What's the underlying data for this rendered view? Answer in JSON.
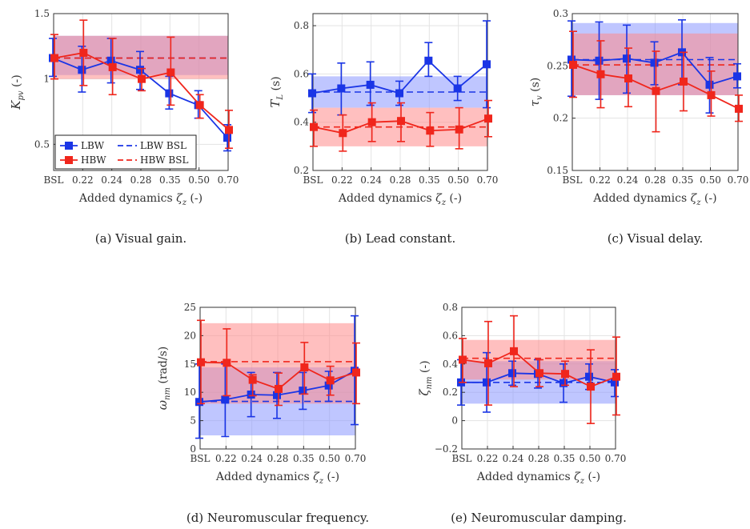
{
  "categories": [
    "BSL",
    "0.22",
    "0.24",
    "0.28",
    "0.35",
    "0.50",
    "0.70"
  ],
  "colors": {
    "lbw": "#1a35e6",
    "hbw": "#f0261c",
    "lbw_band": "#8a97ff",
    "hbw_band": "#ff8a8a",
    "grid": "#e3e3e3",
    "axis": "#333333"
  },
  "legend": {
    "lbw": "LBW",
    "hbw": "HBW",
    "lbw_bsl": "LBW BSL",
    "hbw_bsl": "HBW BSL"
  },
  "chart_data": [
    {
      "id": "a",
      "type": "line",
      "caption": "(a) Visual gain.",
      "ylabel_sym": "K",
      "ylabel_sub": "pv",
      "ylabel_unit": " (-)",
      "xlabel_text": "Added dynamics ",
      "xlabel_sym": "ζ",
      "xlabel_sub": "z",
      "xlabel_unit": " (-)",
      "ylim": [
        0.3,
        1.5
      ],
      "yticks": [
        0.5,
        1,
        1.5
      ],
      "ytick_labels": [
        "0.5",
        "1",
        "1.5"
      ],
      "legend": "bottom-left",
      "series": [
        {
          "name": "LBW",
          "values": [
            1.16,
            1.07,
            1.14,
            1.07,
            0.89,
            0.8,
            0.55
          ],
          "lower": [
            1.02,
            0.9,
            0.97,
            0.92,
            0.77,
            0.7,
            0.45
          ],
          "upper": [
            1.31,
            1.25,
            1.31,
            1.21,
            1.02,
            0.91,
            0.65
          ]
        },
        {
          "name": "HBW",
          "values": [
            1.16,
            1.2,
            1.09,
            1.0,
            1.05,
            0.8,
            0.61
          ],
          "lower": [
            1.0,
            0.95,
            0.88,
            0.91,
            0.8,
            0.7,
            0.47
          ],
          "upper": [
            1.34,
            1.45,
            1.31,
            1.08,
            1.32,
            0.88,
            0.76
          ]
        }
      ],
      "bsl": {
        "LBW": 1.16,
        "HBW": 1.16
      },
      "bands": {
        "LBW": [
          1.03,
          1.33
        ],
        "HBW": [
          1.0,
          1.33
        ]
      }
    },
    {
      "id": "b",
      "type": "line",
      "caption": "(b) Lead constant.",
      "ylabel_sym": "T",
      "ylabel_sub": "L",
      "ylabel_unit": " (s)",
      "xlabel_text": "Added dynamics ",
      "xlabel_sym": "ζ",
      "xlabel_sub": "z",
      "xlabel_unit": " (-)",
      "ylim": [
        0.2,
        0.85
      ],
      "yticks": [
        0.2,
        0.4,
        0.6,
        0.8
      ],
      "ytick_labels": [
        "0.2",
        "0.4",
        "0.6",
        "0.8"
      ],
      "series": [
        {
          "name": "LBW",
          "values": [
            0.52,
            0.54,
            0.555,
            0.52,
            0.655,
            0.54,
            0.64
          ],
          "lower": [
            0.44,
            0.43,
            0.47,
            0.47,
            0.59,
            0.49,
            0.46
          ],
          "upper": [
            0.6,
            0.645,
            0.65,
            0.57,
            0.73,
            0.59,
            0.82
          ]
        },
        {
          "name": "HBW",
          "values": [
            0.38,
            0.355,
            0.4,
            0.405,
            0.365,
            0.37,
            0.415
          ],
          "lower": [
            0.3,
            0.28,
            0.32,
            0.32,
            0.3,
            0.29,
            0.34
          ],
          "upper": [
            0.45,
            0.43,
            0.48,
            0.48,
            0.44,
            0.46,
            0.49
          ]
        }
      ],
      "bsl": {
        "LBW": 0.525,
        "HBW": 0.38
      },
      "bands": {
        "LBW": [
          0.46,
          0.59
        ],
        "HBW": [
          0.3,
          0.46
        ]
      }
    },
    {
      "id": "c",
      "type": "line",
      "caption": "(c) Visual delay.",
      "ylabel_sym": "τ",
      "ylabel_sub": "v",
      "ylabel_unit": " (s)",
      "xlabel_text": "Added dynamics ",
      "xlabel_sym": "ζ",
      "xlabel_sub": "z",
      "xlabel_unit": " (-)",
      "ylim": [
        0.15,
        0.3
      ],
      "yticks": [
        0.15,
        0.2,
        0.25,
        0.3
      ],
      "ytick_labels": [
        "0.15",
        "0.2",
        "0.25",
        "0.3"
      ],
      "series": [
        {
          "name": "LBW",
          "values": [
            0.256,
            0.255,
            0.257,
            0.253,
            0.263,
            0.232,
            0.24
          ],
          "lower": [
            0.221,
            0.218,
            0.224,
            0.232,
            0.232,
            0.205,
            0.229
          ],
          "upper": [
            0.293,
            0.292,
            0.289,
            0.273,
            0.294,
            0.258,
            0.252
          ]
        },
        {
          "name": "HBW",
          "values": [
            0.251,
            0.242,
            0.238,
            0.226,
            0.235,
            0.222,
            0.209
          ],
          "lower": [
            0.22,
            0.21,
            0.211,
            0.187,
            0.207,
            0.202,
            0.197
          ],
          "upper": [
            0.283,
            0.274,
            0.267,
            0.264,
            0.263,
            0.245,
            0.222
          ]
        }
      ],
      "bsl": {
        "LBW": 0.256,
        "HBW": 0.251
      },
      "bands": {
        "LBW": [
          0.222,
          0.291
        ],
        "HBW": [
          0.222,
          0.281
        ]
      }
    },
    {
      "id": "d",
      "type": "line",
      "caption": "(d) Neuromuscular frequency.",
      "ylabel_sym": "ω",
      "ylabel_sub": "nm",
      "ylabel_unit": " (rad/s)",
      "xlabel_text": "Added dynamics ",
      "xlabel_sym": "ζ",
      "xlabel_sub": "z",
      "xlabel_unit": " (-)",
      "ylim": [
        0,
        25
      ],
      "yticks": [
        0,
        5,
        10,
        15,
        20,
        25
      ],
      "ytick_labels": [
        "0",
        "5",
        "10",
        "15",
        "20",
        "25"
      ],
      "series": [
        {
          "name": "LBW",
          "values": [
            8.3,
            8.7,
            9.6,
            9.5,
            10.3,
            11.2,
            13.8
          ],
          "lower": [
            1.9,
            2.2,
            5.7,
            5.4,
            7.0,
            8.4,
            4.3
          ],
          "upper": [
            15.0,
            15.0,
            13.5,
            13.5,
            13.5,
            13.7,
            23.5
          ]
        },
        {
          "name": "HBW",
          "values": [
            15.3,
            15.2,
            12.2,
            10.6,
            14.4,
            12.1,
            13.5
          ],
          "lower": [
            8.0,
            9.4,
            9.4,
            7.7,
            9.7,
            9.5,
            8.0
          ],
          "upper": [
            22.7,
            21.2,
            13.1,
            13.4,
            18.8,
            14.6,
            18.7
          ]
        }
      ],
      "bsl": {
        "LBW": 8.4,
        "HBW": 15.4
      },
      "bands": {
        "LBW": [
          2.4,
          14.4
        ],
        "HBW": [
          8.0,
          22.2
        ]
      }
    },
    {
      "id": "e",
      "type": "line",
      "caption": "(e) Neuromuscular damping.",
      "ylabel_sym": "ζ",
      "ylabel_sub": "nm",
      "ylabel_unit": " (-)",
      "xlabel_text": "Added dynamics ",
      "xlabel_sym": "ζ",
      "xlabel_sub": "z",
      "xlabel_unit": " (-)",
      "ylim": [
        -0.2,
        0.8
      ],
      "yticks": [
        -0.2,
        0,
        0.2,
        0.4,
        0.6,
        0.8
      ],
      "ytick_labels": [
        "−0.2",
        "0",
        "0.2",
        "0.4",
        "0.6",
        "0.8"
      ],
      "series": [
        {
          "name": "LBW",
          "values": [
            0.27,
            0.27,
            0.335,
            0.33,
            0.265,
            0.31,
            0.27
          ],
          "lower": [
            0.11,
            0.06,
            0.25,
            0.23,
            0.13,
            0.22,
            0.17
          ],
          "upper": [
            0.43,
            0.48,
            0.42,
            0.43,
            0.4,
            0.4,
            0.36
          ]
        },
        {
          "name": "HBW",
          "values": [
            0.43,
            0.405,
            0.49,
            0.335,
            0.33,
            0.24,
            0.31
          ],
          "lower": [
            0.27,
            0.11,
            0.24,
            0.24,
            0.25,
            -0.02,
            0.04
          ],
          "upper": [
            0.58,
            0.7,
            0.74,
            0.43,
            0.42,
            0.5,
            0.59
          ]
        }
      ],
      "bsl": {
        "LBW": 0.27,
        "HBW": 0.44
      },
      "bands": {
        "LBW": [
          0.12,
          0.42
        ],
        "HBW": [
          0.29,
          0.57
        ]
      }
    }
  ]
}
